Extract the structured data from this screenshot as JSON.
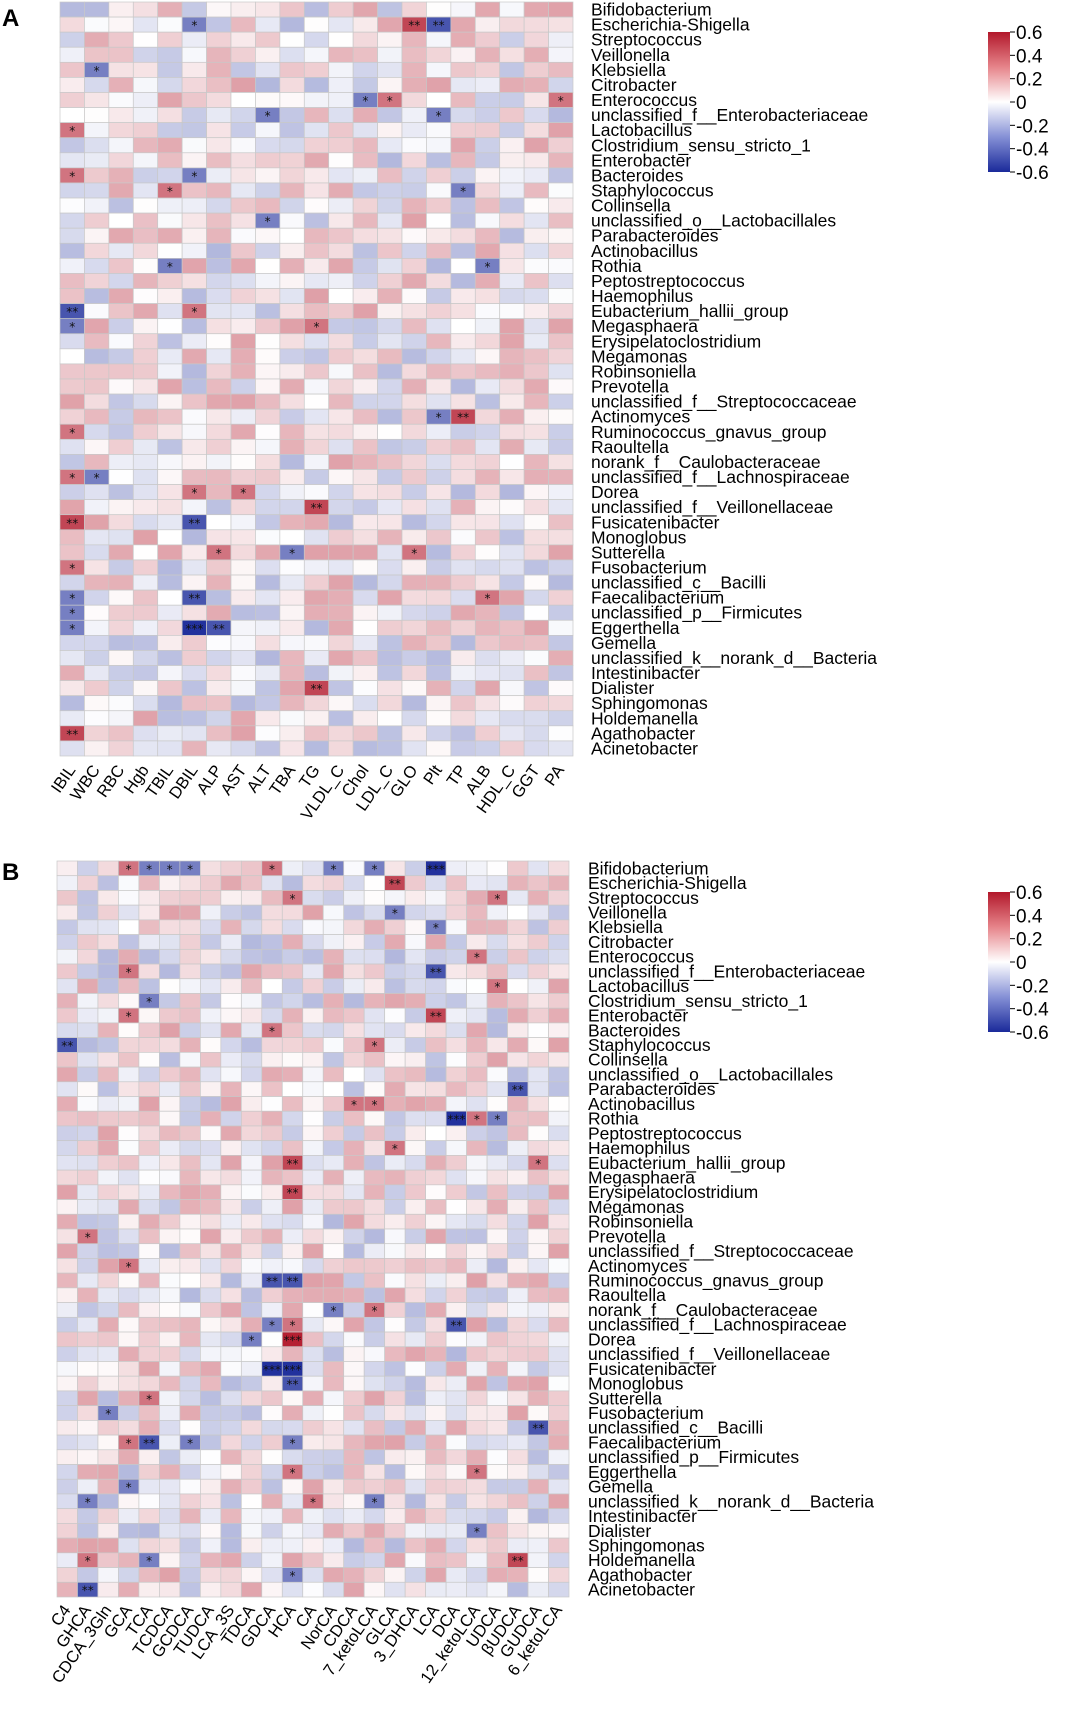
{
  "panels": [
    {
      "letter": "A",
      "rows": [
        "Bifidobacterium",
        "Escherichia-Shigella",
        "Streptococcus",
        "Veillonella",
        "Klebsiella",
        "Citrobacter",
        "Enterococcus",
        "unclassified_f__Enterobacteriaceae",
        "Lactobacillus",
        "Clostridium_sensu_stricto_1",
        "Enterobacter",
        "Bacteroides",
        "Staphylococcus",
        "Collinsella",
        "unclassified_o__Lactobacillales",
        "Parabacteroides",
        "Actinobacillus",
        "Rothia",
        "Peptostreptococcus",
        "Haemophilus",
        "Eubacterium_hallii_group",
        "Megasphaera",
        "Erysipelatoclostridium",
        "Megamonas",
        "Robinsoniella",
        "Prevotella",
        "unclassified_f__Streptococcaceae",
        "Actinomyces",
        "Ruminococcus_gnavus_group",
        "Raoultella",
        "norank_f__Caulobacteraceae",
        "unclassified_f__Lachnospiraceae",
        "Dorea",
        "unclassified_f__Veillonellaceae",
        "Fusicatenibacter",
        "Monoglobus",
        "Sutterella",
        "Fusobacterium",
        "unclassified_c__Bacilli",
        "Faecalibacterium",
        "unclassified_p__Firmicutes",
        "Eggerthella",
        "Gemella",
        "unclassified_k__norank_d__Bacteria",
        "Intestinibacter",
        "Dialister",
        "Sphingomonas",
        "Holdemanella",
        "Agathobacter",
        "Acinetobacter"
      ],
      "columns": [
        "IBIL",
        "WBC",
        "RBC",
        "Hgb",
        "TBIL",
        "DBIL",
        "ALP",
        "AST",
        "ALT",
        "TBA",
        "TG",
        "VLDL_C",
        "Chol",
        "LDL_C",
        "GLO",
        "Plt",
        "TP",
        "ALB",
        "HDL_C",
        "GGT",
        "PA"
      ],
      "colorbar_ticks": [
        "0.6",
        "0.4",
        "0.2",
        "0",
        "-0.2",
        "-0.4",
        "-0.6"
      ],
      "significance": [
        [
          1,
          5,
          "*"
        ],
        [
          1,
          14,
          "**"
        ],
        [
          1,
          15,
          "**"
        ],
        [
          4,
          1,
          "*"
        ],
        [
          6,
          12,
          "*"
        ],
        [
          6,
          13,
          "*"
        ],
        [
          6,
          20,
          "*"
        ],
        [
          7,
          8,
          "*"
        ],
        [
          7,
          15,
          "*"
        ],
        [
          8,
          0,
          "*"
        ],
        [
          11,
          0,
          "*"
        ],
        [
          11,
          5,
          "*"
        ],
        [
          12,
          4,
          "*"
        ],
        [
          12,
          16,
          "*"
        ],
        [
          14,
          8,
          "*"
        ],
        [
          17,
          4,
          "*"
        ],
        [
          17,
          17,
          "*"
        ],
        [
          20,
          0,
          "**"
        ],
        [
          20,
          5,
          "*"
        ],
        [
          21,
          0,
          "*"
        ],
        [
          21,
          10,
          "*"
        ],
        [
          27,
          15,
          "*"
        ],
        [
          27,
          16,
          "**"
        ],
        [
          28,
          0,
          "*"
        ],
        [
          31,
          0,
          "*"
        ],
        [
          31,
          1,
          "*"
        ],
        [
          32,
          5,
          "*"
        ],
        [
          32,
          7,
          "*"
        ],
        [
          33,
          10,
          "**"
        ],
        [
          34,
          0,
          "**"
        ],
        [
          34,
          5,
          "**"
        ],
        [
          36,
          6,
          "*"
        ],
        [
          36,
          9,
          "*"
        ],
        [
          36,
          14,
          "*"
        ],
        [
          37,
          0,
          "*"
        ],
        [
          39,
          0,
          "*"
        ],
        [
          39,
          5,
          "**"
        ],
        [
          39,
          17,
          "*"
        ],
        [
          40,
          0,
          "*"
        ],
        [
          41,
          0,
          "*"
        ],
        [
          41,
          5,
          "***"
        ],
        [
          41,
          6,
          "**"
        ],
        [
          42,
          21,
          "*"
        ],
        [
          45,
          10,
          "**"
        ],
        [
          48,
          0,
          "**"
        ]
      ]
    },
    {
      "letter": "B",
      "rows": [
        "Bifidobacterium",
        "Escherichia-Shigella",
        "Streptococcus",
        "Veillonella",
        "Klebsiella",
        "Citrobacter",
        "Enterococcus",
        "unclassified_f__Enterobacteriaceae",
        "Lactobacillus",
        "Clostridium_sensu_stricto_1",
        "Enterobacter",
        "Bacteroides",
        "Staphylococcus",
        "Collinsella",
        "unclassified_o__Lactobacillales",
        "Parabacteroides",
        "Actinobacillus",
        "Rothia",
        "Peptostreptococcus",
        "Haemophilus",
        "Eubacterium_hallii_group",
        "Megasphaera",
        "Erysipelatoclostridium",
        "Megamonas",
        "Robinsoniella",
        "Prevotella",
        "unclassified_f__Streptococcaceae",
        "Actinomyces",
        "Ruminococcus_gnavus_group",
        "Raoultella",
        "norank_f__Caulobacteraceae",
        "unclassified_f__Lachnospiraceae",
        "Dorea",
        "unclassified_f__Veillonellaceae",
        "Fusicatenibacter",
        "Monoglobus",
        "Sutterella",
        "Fusobacterium",
        "unclassified_c__Bacilli",
        "Faecalibacterium",
        "unclassified_p__Firmicutes",
        "Eggerthella",
        "Gemella",
        "unclassified_k__norank_d__Bacteria",
        "Intestinibacter",
        "Dialister",
        "Sphingomonas",
        "Holdemanella",
        "Agathobacter",
        "Acinetobacter"
      ],
      "columns": [
        "C4",
        "GHCA",
        "CDCA_3Gln",
        "GCA",
        "TCA",
        "TCDCA",
        "GCDCA",
        "TUDCA",
        "LCA_3S",
        "TDCA",
        "GDCA",
        "HCA",
        "CA",
        "NorCA",
        "CDCA",
        "7_ketoLCA",
        "GLCA",
        "3_DHCA",
        "LCA",
        "DCA",
        "12_ketoLCA",
        "UDCA",
        "βUDCA",
        "GUDCA",
        "6_ketoLCA"
      ],
      "colorbar_ticks": [
        "0.6",
        "0.4",
        "0.2",
        "0",
        "-0.2",
        "-0.4",
        "-0.6"
      ],
      "significance": [
        [
          0,
          3,
          "*"
        ],
        [
          0,
          4,
          "*"
        ],
        [
          0,
          5,
          "*"
        ],
        [
          0,
          6,
          "*"
        ],
        [
          0,
          10,
          "*"
        ],
        [
          0,
          13,
          "*"
        ],
        [
          0,
          15,
          "*"
        ],
        [
          0,
          18,
          "***"
        ],
        [
          1,
          16,
          "**"
        ],
        [
          2,
          11,
          "*"
        ],
        [
          2,
          21,
          "*"
        ],
        [
          3,
          16,
          "*"
        ],
        [
          4,
          18,
          "*"
        ],
        [
          6,
          20,
          "*"
        ],
        [
          7,
          3,
          "*"
        ],
        [
          7,
          18,
          "**"
        ],
        [
          8,
          21,
          "*"
        ],
        [
          9,
          4,
          "*"
        ],
        [
          10,
          3,
          "*"
        ],
        [
          10,
          18,
          "**"
        ],
        [
          11,
          10,
          "*"
        ],
        [
          12,
          0,
          "**"
        ],
        [
          12,
          15,
          "*"
        ],
        [
          15,
          22,
          "**"
        ],
        [
          16,
          14,
          "*"
        ],
        [
          16,
          15,
          "*"
        ],
        [
          17,
          19,
          "***"
        ],
        [
          17,
          20,
          "*"
        ],
        [
          17,
          21,
          "*"
        ],
        [
          19,
          16,
          "*"
        ],
        [
          20,
          11,
          "**"
        ],
        [
          20,
          23,
          "*"
        ],
        [
          22,
          11,
          "**"
        ],
        [
          25,
          1,
          "*"
        ],
        [
          27,
          3,
          "*"
        ],
        [
          28,
          10,
          "**"
        ],
        [
          28,
          11,
          "**"
        ],
        [
          30,
          13,
          "*"
        ],
        [
          30,
          15,
          "*"
        ],
        [
          31,
          10,
          "*"
        ],
        [
          31,
          11,
          "*"
        ],
        [
          31,
          19,
          "**"
        ],
        [
          32,
          9,
          "*"
        ],
        [
          32,
          11,
          "***"
        ],
        [
          34,
          10,
          "***"
        ],
        [
          34,
          11,
          "***"
        ],
        [
          35,
          11,
          "**"
        ],
        [
          36,
          4,
          "*"
        ],
        [
          37,
          2,
          "*"
        ],
        [
          38,
          23,
          "**"
        ],
        [
          39,
          3,
          "*"
        ],
        [
          39,
          4,
          "**"
        ],
        [
          39,
          6,
          "*"
        ],
        [
          39,
          11,
          "*"
        ],
        [
          41,
          11,
          "*"
        ],
        [
          41,
          20,
          "*"
        ],
        [
          42,
          3,
          "*"
        ],
        [
          43,
          1,
          "*"
        ],
        [
          43,
          12,
          "*"
        ],
        [
          43,
          15,
          "*"
        ],
        [
          45,
          20,
          "*"
        ],
        [
          47,
          1,
          "*"
        ],
        [
          47,
          4,
          "*"
        ],
        [
          47,
          22,
          "**"
        ],
        [
          48,
          11,
          "*"
        ],
        [
          49,
          1,
          "**"
        ]
      ]
    }
  ],
  "chart_data": [
    {
      "type": "heatmap",
      "panel": "A",
      "title": "",
      "color_scale": {
        "min": -0.6,
        "max": 0.6,
        "low_color": "#1a2a9a",
        "mid_color": "#ffffff",
        "high_color": "#b2182b"
      },
      "note": "Spearman-style correlation values estimated from cell colors; asterisks listed in panels[0].significance as [row, column, mark]."
    },
    {
      "type": "heatmap",
      "panel": "B",
      "title": "",
      "color_scale": {
        "min": -0.6,
        "max": 0.6,
        "low_color": "#1a2a9a",
        "mid_color": "#ffffff",
        "high_color": "#b2182b"
      }
    }
  ]
}
